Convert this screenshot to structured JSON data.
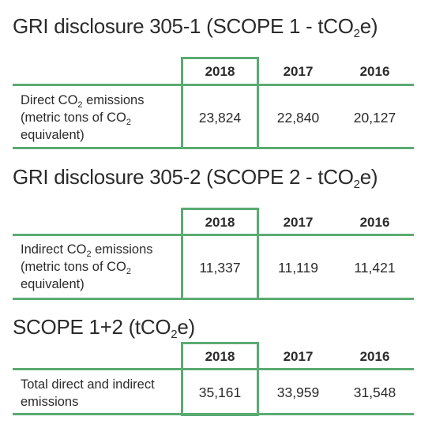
{
  "columns": [
    "2018",
    "2017",
    "2016"
  ],
  "sections": [
    {
      "title_pre": "GRI disclosure 305-1 (SCOPE 1 - tCO",
      "title_sub": "2",
      "title_post": "e)",
      "label_lines": [
        {
          "pre": "Direct CO",
          "sub": "2",
          "post": " emissions"
        },
        {
          "pre": "(metric tons of CO",
          "sub": "2",
          "post": ""
        },
        {
          "pre": "equivalent)",
          "sub": "",
          "post": ""
        }
      ],
      "values": [
        "23,824",
        "22,840",
        "20,127"
      ]
    },
    {
      "title_pre": "GRI disclosure 305-2 (SCOPE 2 - tCO",
      "title_sub": "2",
      "title_post": "e)",
      "label_lines": [
        {
          "pre": "Indirect CO",
          "sub": "2",
          "post": " emissions"
        },
        {
          "pre": "(metric tons of CO",
          "sub": "2",
          "post": ""
        },
        {
          "pre": "equivalent)",
          "sub": "",
          "post": ""
        }
      ],
      "values": [
        "11,337",
        "11,119",
        "11,421"
      ]
    },
    {
      "title_pre": "SCOPE 1+2 (tCO",
      "title_sub": "2",
      "title_post": "e)",
      "label_lines": [
        {
          "pre": "Total direct and indirect",
          "sub": "",
          "post": ""
        },
        {
          "pre": "emissions",
          "sub": "",
          "post": ""
        }
      ],
      "values": [
        "35,161",
        "33,959",
        "31,548"
      ]
    }
  ],
  "colors": {
    "accent": "#5bab72",
    "text": "#2b2b2b"
  }
}
